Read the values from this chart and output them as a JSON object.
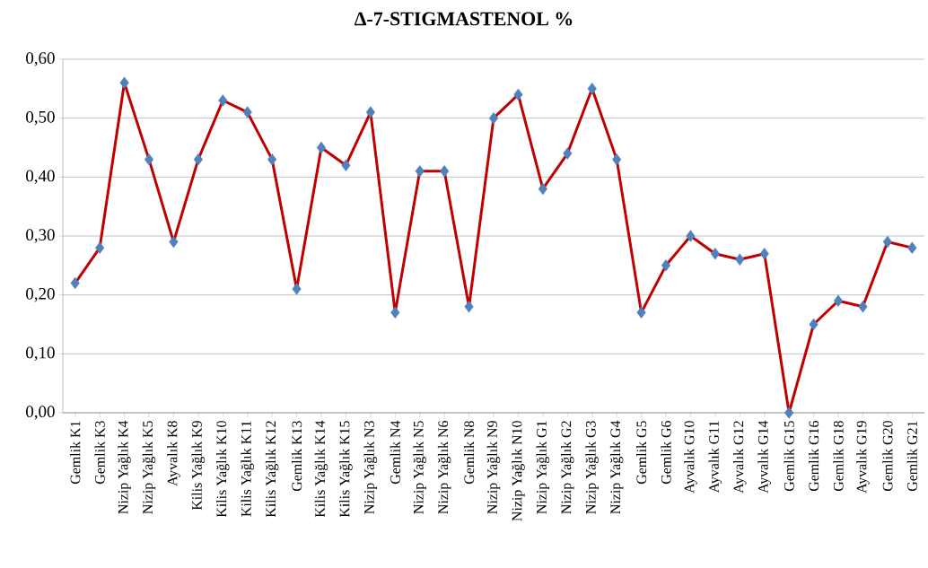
{
  "chart_data": {
    "type": "line",
    "title": "Δ-7-STIGMASTENOL %",
    "categories": [
      "Gemlik K1",
      "Gemlik K3",
      "Nizip Yağlık K4",
      "Nizip Yağlık K5",
      "Ayvalık K8",
      "Kilis Yağlık K9",
      "Kilis Yağlık K10",
      "Kilis Yağlık K11",
      "Kilis Yağlık K12",
      "Gemlik K13",
      "Kilis Yağlık K14",
      "Kilis Yağlık K15",
      "Nizip Yağlık N3",
      "Gemlik N4",
      "Nizip Yağlık N5",
      "Nizip Yağlık N6",
      "Gemlik N8",
      "Nizip Yağlık N9",
      "Nizip Yağlık N10",
      "Nizip Yağlık G1",
      "Nizip Yağlık G2",
      "Nizip Yağlık G3",
      "Nizip Yağlık G4",
      "Gemlik G5",
      "Gemlik G6",
      "Ayvalık G10",
      "Ayvalık G11",
      "Ayvalık G12",
      "Ayvalık G14",
      "Gemlik G15",
      "Gemlik G16",
      "Gemlik G18",
      "Ayvalık G19",
      "Gemlik G20",
      "Gemlik G21"
    ],
    "series": [
      {
        "color": "#c00000",
        "colors": [
          "#4f81bd",
          "#4f81bd",
          "#4f81bd",
          "#4f81bd",
          "#4f81bd",
          "#4f81bd",
          "#4f81bd",
          "#4f81bd",
          "#4f81bd",
          "#4f81bd",
          "#4f81bd",
          "#4f81bd",
          "#4f81bd",
          "#4f81bd",
          "#4f81bd",
          "#4f81bd",
          "#4f81bd",
          "#4f81bd",
          "#4f81bd",
          "#4f81bd",
          "#4f81bd",
          "#4f81bd",
          "#4f81bd",
          "#4f81bd",
          "#4f81bd",
          "#4f81bd",
          "#4f81bd",
          "#4f81bd",
          "#4f81bd",
          "#4f81bd",
          "#4f81bd",
          "#4f81bd",
          "#4f81bd",
          "#4f81bd",
          "#4f81bd"
        ],
        "values": [
          0.22,
          0.28,
          0.56,
          0.43,
          0.29,
          0.43,
          0.53,
          0.51,
          0.43,
          0.21,
          0.45,
          0.42,
          0.51,
          0.17,
          0.41,
          0.41,
          0.18,
          0.5,
          0.54,
          0.38,
          0.44,
          0.55,
          0.43,
          0.17,
          0.25,
          0.3,
          0.27,
          0.26,
          0.27,
          0.0,
          0.15,
          0.19,
          0.18,
          0.29,
          0.28
        ]
      }
    ],
    "ylim": [
      0,
      0.6
    ],
    "yticks": [
      {
        "value": 0,
        "label": "0,00"
      },
      {
        "value": 0.1,
        "label": "0,10"
      },
      {
        "value": 0.2,
        "label": "0,20"
      },
      {
        "value": 0.3,
        "label": "0,30"
      },
      {
        "value": 0.4,
        "label": "0,40"
      },
      {
        "value": 0.5,
        "label": "0,50"
      },
      {
        "value": 0.6,
        "label": "0,60"
      }
    ],
    "grid": "y",
    "marker": "diamond",
    "line_style": "solid"
  }
}
